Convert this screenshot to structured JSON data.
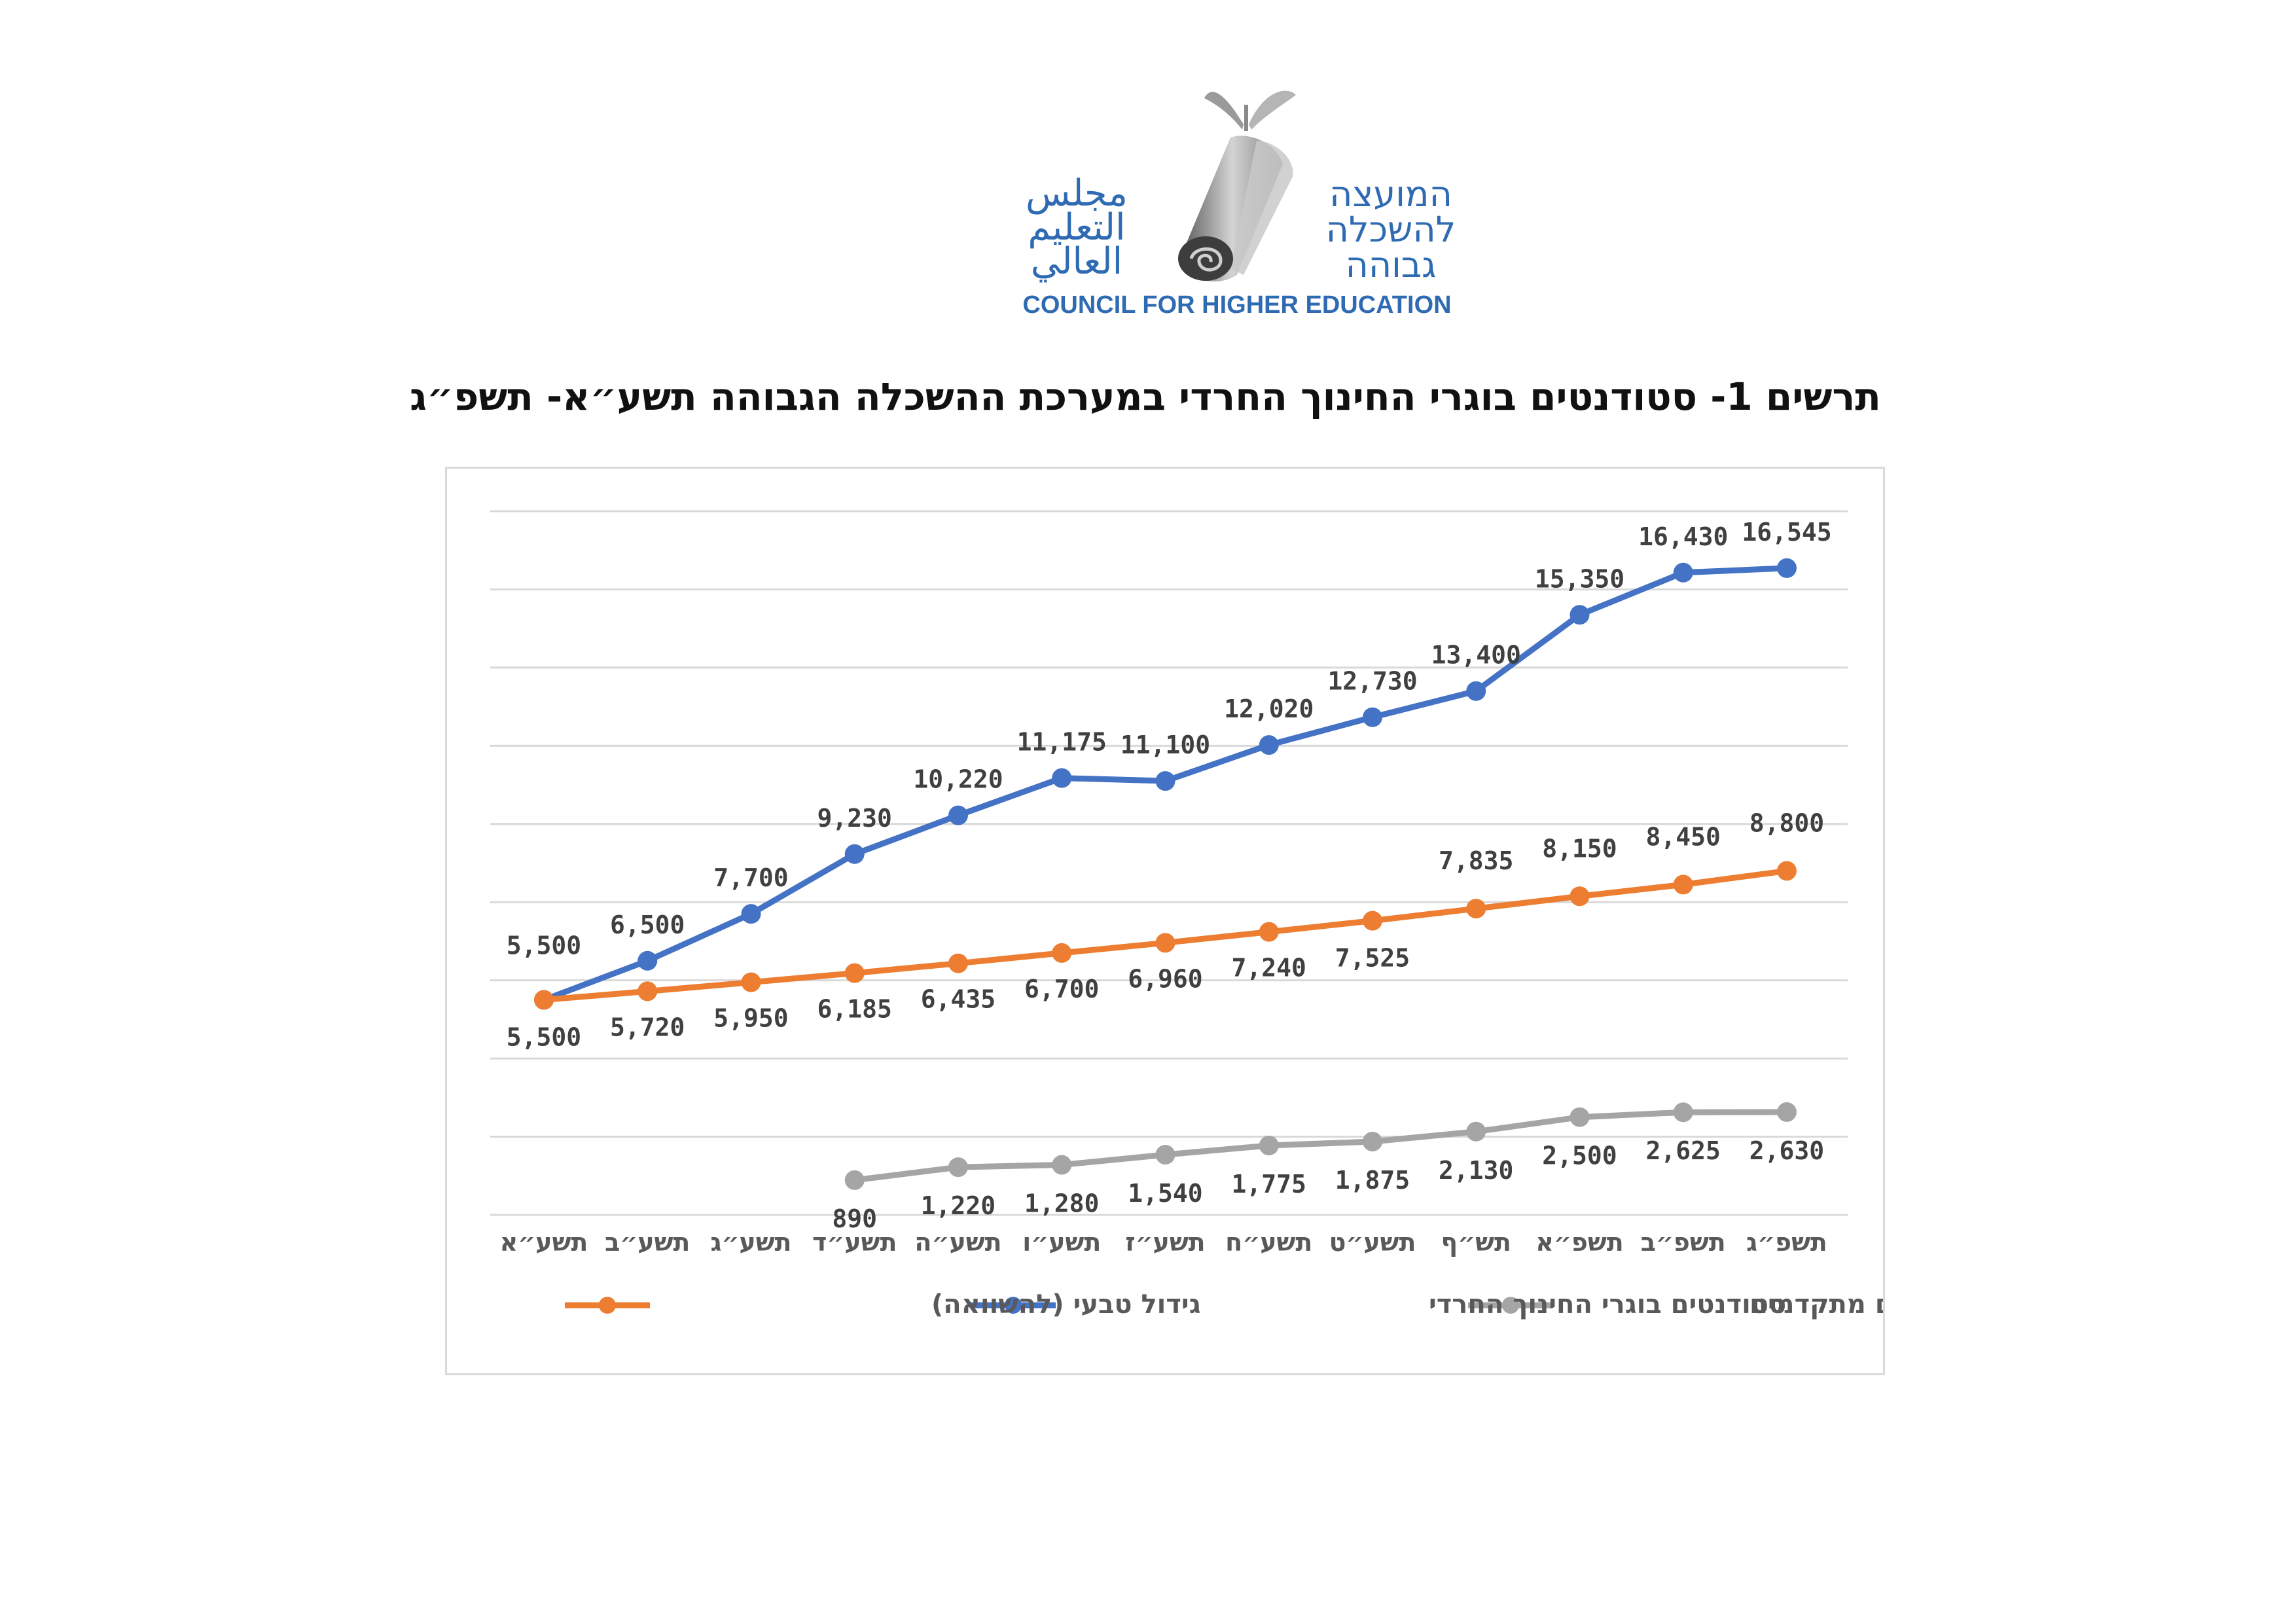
{
  "logo": {
    "hebrew_lines": [
      "המועצה",
      "להשכלה",
      "גבוהה"
    ],
    "arabic_lines": [
      "مجلس",
      "التعليم",
      "العالي"
    ],
    "english": "COUNCIL FOR HIGHER EDUCATION"
  },
  "colors": {
    "haredi_students": "#4472c4",
    "natural_growth": "#ed7d31",
    "advanced_degrees": "#a5a5a5",
    "gridline": "#d9d9d9",
    "logo_blue": "#2f6bb3"
  },
  "chart_data": {
    "type": "line",
    "title": "תרשים 1- סטודנטים בוגרי החינוך החרדי במערכת ההשכלה הגבוהה תשע״א- תשפ״ג",
    "xlabel": "",
    "ylabel": "",
    "ylim": [
      0,
      18000
    ],
    "grid": true,
    "legend_position": "bottom",
    "categories": [
      "תשע״א",
      "תשע״ב",
      "תשע״ג",
      "תשע״ד",
      "תשע״ה",
      "תשע״ו",
      "תשע״ז",
      "תשע״ח",
      "תשע״ט",
      "תש״ף",
      "תשפ״א",
      "תשפ״ב",
      "תשפ״ג"
    ],
    "series": [
      {
        "name": "סטודנטים בוגרי החינוך החרדי",
        "key": "haredi_students",
        "values": [
          5500,
          6500,
          7700,
          9230,
          10220,
          11175,
          11100,
          12020,
          12730,
          13400,
          15350,
          16430,
          16545
        ],
        "labels": [
          "5,500",
          "6,500",
          "7,700",
          "9,230",
          "10,220",
          "11,175",
          "11,100",
          "12,020",
          "12,730",
          "13,400",
          "15,350",
          "16,430",
          "16,545"
        ]
      },
      {
        "name": "גידול טבעי (להשוואה)",
        "key": "natural_growth",
        "values": [
          5500,
          5720,
          5950,
          6185,
          6435,
          6700,
          6960,
          7240,
          7525,
          7835,
          8150,
          8450,
          8800
        ],
        "labels": [
          "5,500",
          "5,720",
          "5,950",
          "6,185",
          "6,435",
          "6,700",
          "6,960",
          "7,240",
          "7,525",
          "7,835",
          "8,150",
          "8,450",
          "8,800"
        ]
      },
      {
        "name": "תארים מתקדמים",
        "key": "advanced_degrees",
        "values": [
          null,
          null,
          null,
          890,
          1220,
          1280,
          1540,
          1775,
          1875,
          2130,
          2500,
          2625,
          2630
        ],
        "labels": [
          null,
          null,
          null,
          "890",
          "1,220",
          "1,280",
          "1,540",
          "1,775",
          "1,875",
          "2,130",
          "2,500",
          "2,625",
          "2,630"
        ]
      }
    ]
  }
}
